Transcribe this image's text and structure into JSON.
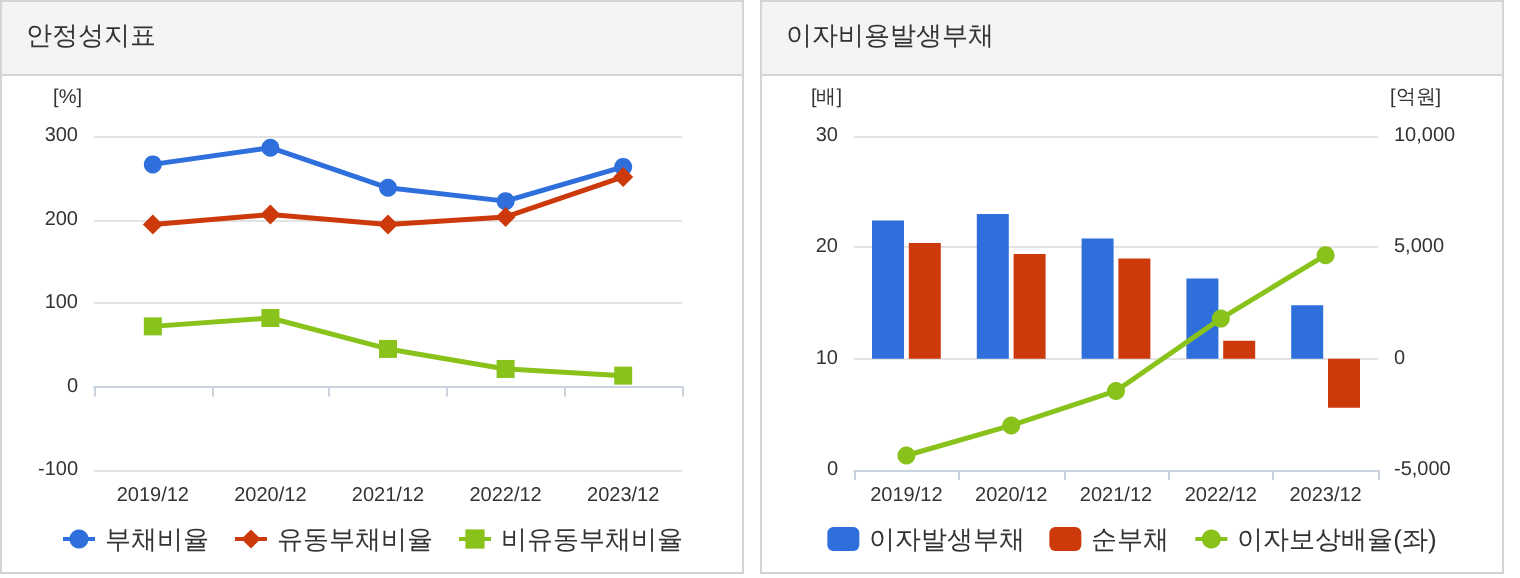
{
  "chart_data": [
    {
      "type": "line",
      "title": "안정성지표",
      "ylabel": "[%]",
      "categories": [
        "2019/12",
        "2020/12",
        "2021/12",
        "2022/12",
        "2023/12"
      ],
      "series": [
        {
          "name": "부채비율",
          "color": "#2f6fdc",
          "marker": "circle",
          "values": [
            266,
            286,
            238,
            222,
            263
          ]
        },
        {
          "name": "유동부채비율",
          "color": "#cc3a0c",
          "marker": "diamond",
          "values": [
            194,
            206,
            194,
            203,
            251
          ]
        },
        {
          "name": "비유동부채비율",
          "color": "#88c21a",
          "marker": "square",
          "values": [
            72,
            82,
            45,
            21,
            13
          ]
        }
      ],
      "ylim": [
        -100,
        300
      ],
      "yticks": [
        -100,
        0,
        100,
        200,
        300
      ],
      "grid": "y",
      "legend": "bottom"
    },
    {
      "type": "bar",
      "title": "이자비용발생부채",
      "ylabel": "[배]",
      "y2label": "[억원]",
      "categories": [
        "2019/12",
        "2020/12",
        "2021/12",
        "2022/12",
        "2023/12"
      ],
      "series": [
        {
          "name": "이자발생부채",
          "color": "#2f6fdc",
          "axis": "y2",
          "values": [
            6200,
            6500,
            5400,
            3600,
            2400
          ]
        },
        {
          "name": "순부채",
          "color": "#cc3a0c",
          "axis": "y2",
          "values": [
            5200,
            4700,
            4500,
            800,
            -2200
          ]
        },
        {
          "name": "이자보상배율(좌)",
          "type": "line",
          "color": "#88c21a",
          "marker": "circle",
          "values": [
            1.3,
            4.0,
            7.1,
            13.6,
            19.3
          ]
        }
      ],
      "ylim": [
        0,
        30
      ],
      "yticks": [
        0,
        10,
        20,
        30
      ],
      "y2lim": [
        -5000,
        10000
      ],
      "y2ticks": [
        {
          "value": -5000,
          "label": "-5,000"
        },
        0,
        {
          "value": 5000,
          "label": "5,000"
        },
        {
          "value": 10000,
          "label": "10,000"
        }
      ],
      "grid": "y",
      "legend": "bottom"
    }
  ]
}
